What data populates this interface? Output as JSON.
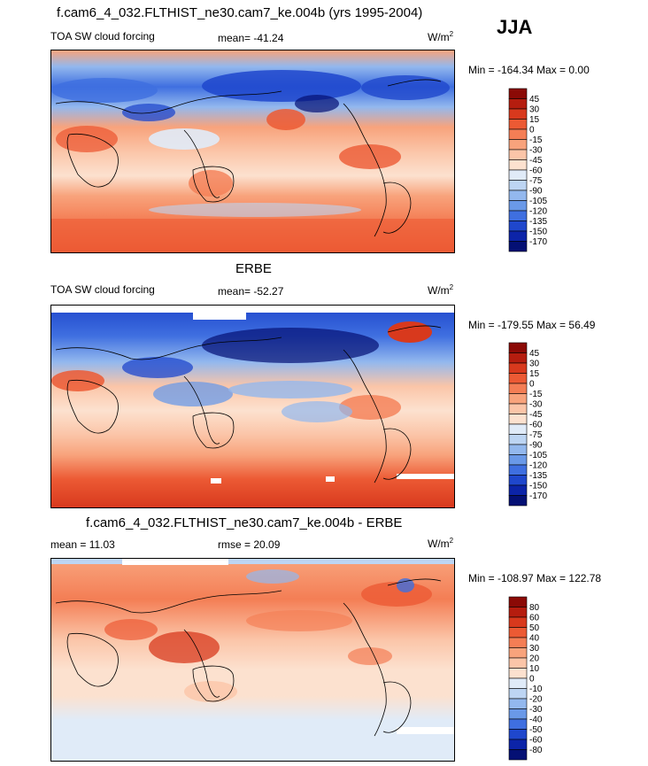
{
  "season": "JJA",
  "panels": [
    {
      "title": "f.cam6_4_032.FLTHIST_ne30.cam7_ke.004b (yrs 1995-2004)",
      "left_label": "TOA SW cloud forcing",
      "center_label": "mean= -41.24",
      "units": "W/m",
      "units_sup": "2",
      "minmax": "Min = -164.34 Max =   0.00",
      "colorbar_labels": [
        "45",
        "30",
        "15",
        "0",
        "-15",
        "-30",
        "-45",
        "-60",
        "-75",
        "-90",
        "-105",
        "-120",
        "-135",
        "-150",
        "-170"
      ],
      "colorbar_colors": [
        "#8b0a06",
        "#b51d0f",
        "#d8391d",
        "#ec5a34",
        "#f47e55",
        "#f8a37c",
        "#fbc5a8",
        "#fce1cf",
        "#e0ebf8",
        "#bdd5f3",
        "#93b8ee",
        "#6a99e8",
        "#3f6fe0",
        "#1f47cc",
        "#0c24a8",
        "#041074"
      ]
    },
    {
      "title": "ERBE",
      "left_label": "TOA SW cloud forcing",
      "center_label": "mean= -52.27",
      "units": "W/m",
      "units_sup": "2",
      "minmax": "Min = -179.55 Max =  56.49",
      "colorbar_labels": [
        "45",
        "30",
        "15",
        "0",
        "-15",
        "-30",
        "-45",
        "-60",
        "-75",
        "-90",
        "-105",
        "-120",
        "-135",
        "-150",
        "-170"
      ],
      "colorbar_colors": [
        "#8b0a06",
        "#b51d0f",
        "#d8391d",
        "#ec5a34",
        "#f47e55",
        "#f8a37c",
        "#fbc5a8",
        "#fce1cf",
        "#e0ebf8",
        "#bdd5f3",
        "#93b8ee",
        "#6a99e8",
        "#3f6fe0",
        "#1f47cc",
        "#0c24a8",
        "#041074"
      ]
    },
    {
      "title": "f.cam6_4_032.FLTHIST_ne30.cam7_ke.004b - ERBE",
      "left_label": "mean =  11.03",
      "center_label": "rmse =  20.09",
      "units": "W/m",
      "units_sup": "2",
      "minmax": "Min = -108.97 Max = 122.78",
      "colorbar_labels": [
        "80",
        "60",
        "50",
        "40",
        "30",
        "20",
        "10",
        "0",
        "-10",
        "-20",
        "-30",
        "-40",
        "-50",
        "-60",
        "-80"
      ],
      "colorbar_colors": [
        "#8b0a06",
        "#b51d0f",
        "#d8391d",
        "#ec5a34",
        "#f47e55",
        "#f8a37c",
        "#fbc5a8",
        "#fce1cf",
        "#e0ebf8",
        "#bdd5f3",
        "#93b8ee",
        "#6a99e8",
        "#3f6fe0",
        "#1f47cc",
        "#0c24a8",
        "#041074"
      ]
    }
  ],
  "chart_data": {
    "type": "heatmap",
    "panels": [
      {
        "title": "f.cam6_4_032.FLTHIST_ne30.cam7_ke.004b (yrs 1995-2004)",
        "variable": "TOA SW cloud forcing",
        "mean": -41.24,
        "min": -164.34,
        "max": 0.0,
        "units": "W/m2",
        "levels": [
          45,
          30,
          15,
          0,
          -15,
          -30,
          -45,
          -60,
          -75,
          -90,
          -105,
          -120,
          -135,
          -150,
          -170
        ]
      },
      {
        "title": "ERBE",
        "variable": "TOA SW cloud forcing",
        "mean": -52.27,
        "min": -179.55,
        "max": 56.49,
        "units": "W/m2",
        "levels": [
          45,
          30,
          15,
          0,
          -15,
          -30,
          -45,
          -60,
          -75,
          -90,
          -105,
          -120,
          -135,
          -150,
          -170
        ]
      },
      {
        "title": "f.cam6_4_032.FLTHIST_ne30.cam7_ke.004b - ERBE",
        "mean": 11.03,
        "rmse": 20.09,
        "min": -108.97,
        "max": 122.78,
        "units": "W/m2",
        "levels": [
          80,
          60,
          50,
          40,
          30,
          20,
          10,
          0,
          -10,
          -20,
          -30,
          -40,
          -50,
          -60,
          -80
        ]
      }
    ]
  }
}
